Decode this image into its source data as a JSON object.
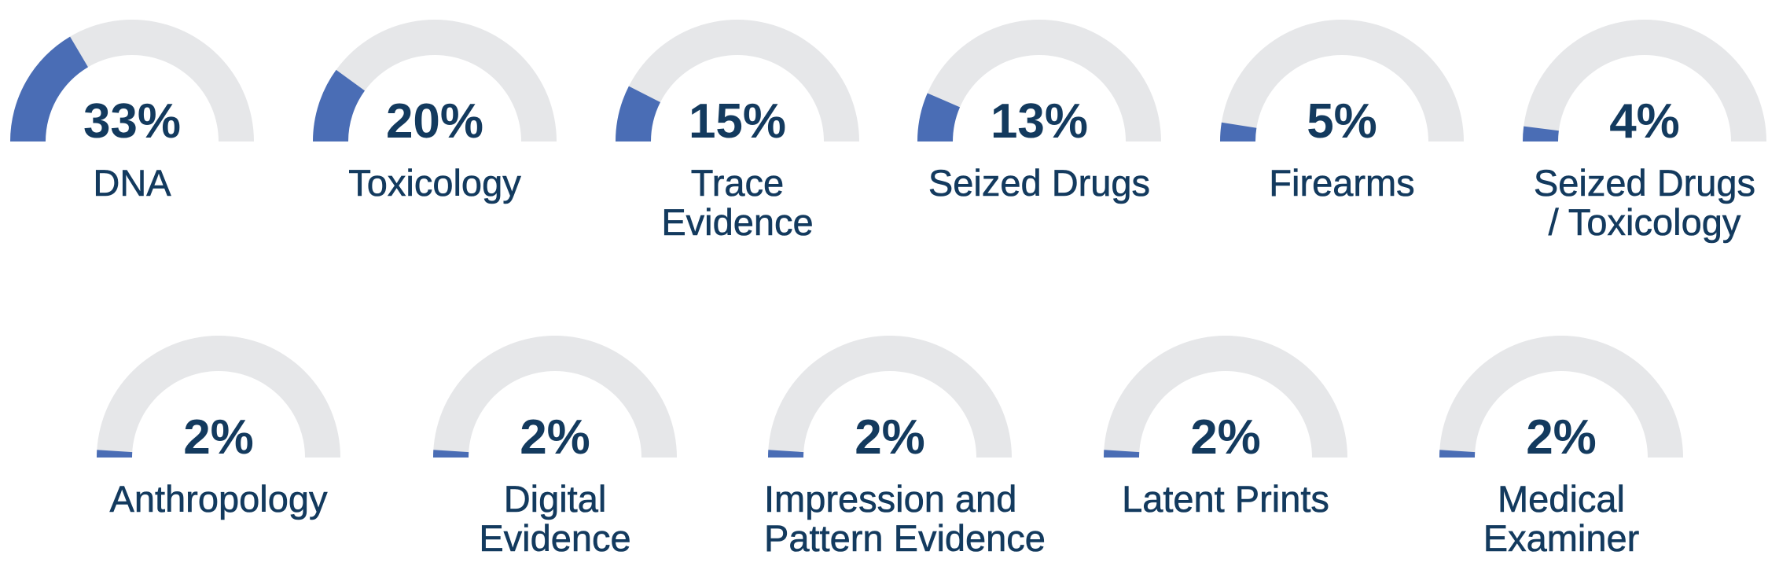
{
  "chart_data": {
    "type": "gauge",
    "unit": "%",
    "max": 100,
    "colors": {
      "fill": "#4a6db5",
      "track": "#e6e7e9",
      "text": "#133a5e"
    },
    "gauges": [
      {
        "value": 33,
        "value_label": "33%",
        "label_lines": [
          "DNA"
        ]
      },
      {
        "value": 20,
        "value_label": "20%",
        "label_lines": [
          "Toxicology"
        ]
      },
      {
        "value": 15,
        "value_label": "15%",
        "label_lines": [
          "Trace",
          "Evidence"
        ]
      },
      {
        "value": 13,
        "value_label": "13%",
        "label_lines": [
          "Seized Drugs"
        ]
      },
      {
        "value": 5,
        "value_label": "5%",
        "label_lines": [
          "Firearms"
        ]
      },
      {
        "value": 4,
        "value_label": "4%",
        "label_lines": [
          "Seized Drugs",
          "/ Toxicology"
        ]
      },
      {
        "value": 2,
        "value_label": "2%",
        "label_lines": [
          "Anthropology"
        ]
      },
      {
        "value": 2,
        "value_label": "2%",
        "label_lines": [
          "Digital",
          "Evidence"
        ]
      },
      {
        "value": 2,
        "value_label": "2%",
        "label_lines": [
          "Impression and",
          "Pattern Evidence"
        ]
      },
      {
        "value": 2,
        "value_label": "2%",
        "label_lines": [
          "Latent Prints"
        ]
      },
      {
        "value": 2,
        "value_label": "2%",
        "label_lines": [
          "Medical",
          "Examiner"
        ]
      }
    ]
  }
}
